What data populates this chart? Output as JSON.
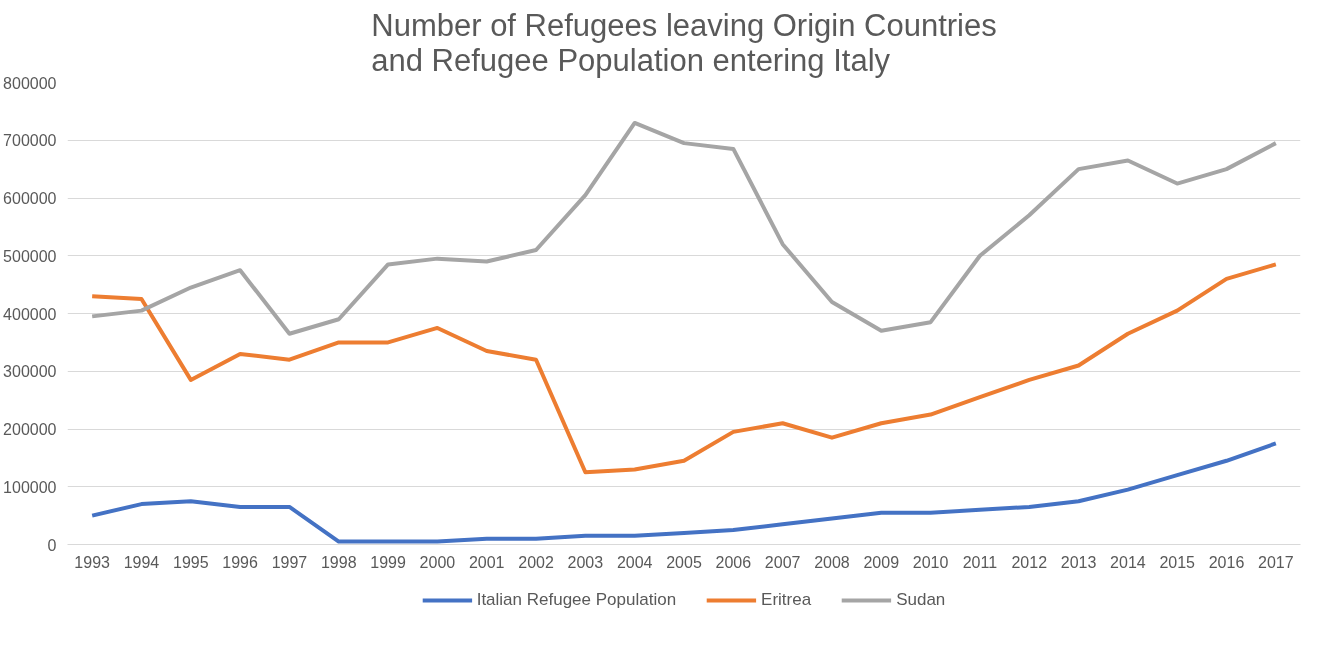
{
  "chart_data": {
    "type": "line",
    "title": "Number of Refugees leaving Origin Countries\nand Refugee Population entering Italy",
    "categories": [
      "1993",
      "1994",
      "1995",
      "1996",
      "1997",
      "1998",
      "1999",
      "2000",
      "2001",
      "2002",
      "2003",
      "2004",
      "2005",
      "2006",
      "2007",
      "2008",
      "2009",
      "2010",
      "2011",
      "2012",
      "2013",
      "2014",
      "2015",
      "2016",
      "2017"
    ],
    "series": [
      {
        "name": "Italian Refugee Population",
        "color": "#4472c4",
        "values": [
          50000,
          70000,
          75000,
          65000,
          65000,
          5000,
          5000,
          5000,
          10000,
          10000,
          15000,
          15000,
          20000,
          25000,
          35000,
          45000,
          55000,
          55000,
          60000,
          65000,
          75000,
          95000,
          120000,
          145000,
          175000
        ]
      },
      {
        "name": "Eritrea",
        "color": "#ed7d31",
        "values": [
          430000,
          425000,
          285000,
          330000,
          320000,
          350000,
          350000,
          375000,
          335000,
          320000,
          125000,
          130000,
          145000,
          195000,
          210000,
          185000,
          210000,
          225000,
          255000,
          285000,
          310000,
          365000,
          405000,
          460000,
          485000
        ]
      },
      {
        "name": "Sudan",
        "color": "#a5a5a5",
        "values": [
          395000,
          405000,
          445000,
          475000,
          365000,
          390000,
          485000,
          495000,
          490000,
          510000,
          605000,
          730000,
          695000,
          685000,
          520000,
          420000,
          370000,
          385000,
          500000,
          570000,
          650000,
          665000,
          625000,
          650000,
          695000
        ]
      }
    ],
    "ylim": [
      0,
      800000
    ],
    "yticks": [
      0,
      100000,
      200000,
      300000,
      400000,
      500000,
      600000,
      700000,
      800000
    ],
    "grid": "y",
    "legend": "bottom",
    "marker": "none",
    "line_style": "solid"
  }
}
